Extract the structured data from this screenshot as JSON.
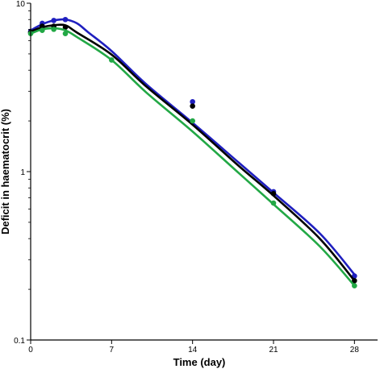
{
  "chart_data": {
    "type": "line",
    "title": "",
    "xlabel": "Time (day)",
    "ylabel": "Deficit in haematocrit (%)",
    "xlim": [
      0,
      30
    ],
    "ylim": [
      0.1,
      10
    ],
    "y_scale": "log",
    "grid": false,
    "x_ticks": [
      0,
      7,
      14,
      21,
      28
    ],
    "x_tick_labels": [
      "0",
      "7",
      "14",
      "21",
      "28"
    ],
    "y_ticks": [
      0.1,
      1,
      10
    ],
    "y_tick_labels": [
      "0.1",
      "1",
      "10"
    ],
    "series": [
      {
        "color": "#1f1fbf",
        "points": {
          "x": [
            0,
            1,
            2,
            3,
            14,
            21,
            28
          ],
          "y": [
            6.8,
            7.6,
            7.9,
            8.0,
            2.6,
            0.76,
            0.24
          ]
        },
        "curve": {
          "x": [
            0,
            1,
            2,
            3,
            4,
            5,
            7,
            10,
            14,
            18,
            21,
            25,
            28
          ],
          "y": [
            6.9,
            7.5,
            7.9,
            8.0,
            7.6,
            6.7,
            5.2,
            3.3,
            1.95,
            1.13,
            0.75,
            0.43,
            0.245
          ]
        }
      },
      {
        "color": "#000000",
        "points": {
          "x": [
            0,
            1,
            2,
            3,
            14,
            21,
            28
          ],
          "y": [
            6.7,
            7.3,
            7.3,
            7.2,
            2.45,
            0.74,
            0.225
          ]
        },
        "curve": {
          "x": [
            0,
            1,
            2,
            3,
            4,
            7,
            10,
            14,
            18,
            21,
            25,
            28
          ],
          "y": [
            6.8,
            7.2,
            7.4,
            7.4,
            6.7,
            4.95,
            3.2,
            1.9,
            1.08,
            0.72,
            0.4,
            0.225
          ]
        }
      },
      {
        "color": "#22a845",
        "points": {
          "x": [
            0,
            1,
            2,
            3,
            7,
            14,
            21,
            28
          ],
          "y": [
            6.6,
            6.9,
            7.0,
            6.6,
            4.6,
            2.0,
            0.65,
            0.21
          ]
        },
        "curve": {
          "x": [
            0,
            1,
            2,
            3,
            4,
            7,
            10,
            14,
            18,
            21,
            25,
            28
          ],
          "y": [
            6.6,
            7.0,
            7.1,
            6.9,
            6.3,
            4.6,
            2.95,
            1.73,
            0.98,
            0.64,
            0.36,
            0.21
          ]
        }
      }
    ]
  }
}
